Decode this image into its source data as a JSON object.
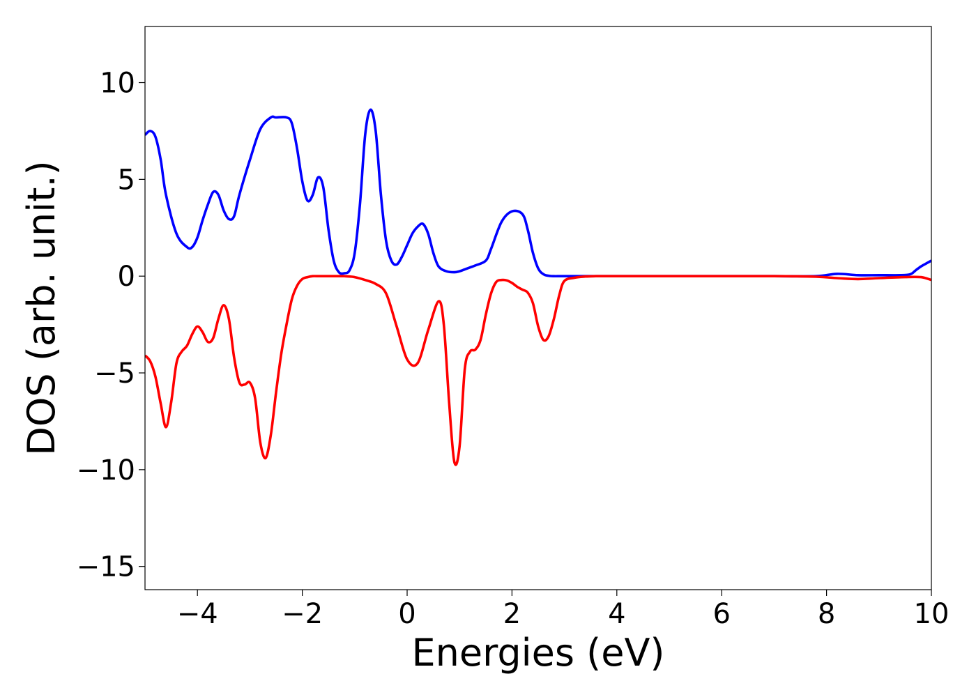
{
  "chart_data": {
    "type": "line",
    "title": "",
    "xlabel": "Energies (eV)",
    "ylabel": "DOS (arb. unit.)",
    "xlim": [
      -5,
      10
    ],
    "ylim": [
      -16.2,
      12.9
    ],
    "xticks": [
      -4,
      -2,
      0,
      2,
      4,
      6,
      8,
      10
    ],
    "xtick_labels": [
      "−4",
      "−2",
      "0",
      "2",
      "4",
      "6",
      "8",
      "10"
    ],
    "yticks": [
      10,
      5,
      0,
      -5,
      -10,
      -15
    ],
    "ytick_labels": [
      "10",
      "5",
      "0",
      "−5",
      "−10",
      "−15"
    ],
    "grid": false,
    "legend": "none",
    "series": [
      {
        "color": "#0000ff",
        "x": [
          -5.0,
          -4.9,
          -4.8,
          -4.7,
          -4.6,
          -4.4,
          -4.2,
          -4.1,
          -4.0,
          -3.9,
          -3.8,
          -3.7,
          -3.6,
          -3.5,
          -3.4,
          -3.3,
          -3.2,
          -3.0,
          -2.8,
          -2.6,
          -2.5,
          -2.3,
          -2.2,
          -2.1,
          -2.0,
          -1.9,
          -1.8,
          -1.7,
          -1.6,
          -1.5,
          -1.4,
          -1.3,
          -1.2,
          -1.1,
          -1.0,
          -0.9,
          -0.8,
          -0.7,
          -0.6,
          -0.5,
          -0.4,
          -0.3,
          -0.2,
          -0.1,
          0.0,
          0.1,
          0.2,
          0.3,
          0.4,
          0.5,
          0.6,
          0.75,
          0.9,
          1.0,
          1.1,
          1.2,
          1.3,
          1.5,
          1.6,
          1.8,
          2.0,
          2.2,
          2.3,
          2.4,
          2.5,
          2.6,
          2.7,
          2.8,
          2.9,
          3.0,
          3.1,
          3.2,
          3.4,
          4.0,
          5.0,
          6.0,
          7.0,
          7.8,
          8.2,
          8.6,
          9.0,
          9.4,
          9.6,
          9.7,
          9.8,
          9.9,
          10.0
        ],
        "values": [
          7.3,
          7.5,
          7.2,
          6.0,
          4.2,
          2.2,
          1.5,
          1.5,
          2.0,
          2.9,
          3.7,
          4.35,
          4.2,
          3.4,
          2.95,
          3.1,
          4.2,
          6.0,
          7.6,
          8.2,
          8.2,
          8.2,
          7.9,
          6.6,
          4.9,
          3.9,
          4.2,
          5.1,
          4.6,
          2.4,
          0.8,
          0.2,
          0.15,
          0.3,
          1.2,
          3.7,
          7.3,
          8.6,
          7.5,
          4.2,
          1.8,
          0.8,
          0.6,
          1.0,
          1.6,
          2.2,
          2.55,
          2.7,
          2.2,
          1.2,
          0.5,
          0.25,
          0.2,
          0.25,
          0.35,
          0.45,
          0.55,
          0.8,
          1.4,
          2.8,
          3.35,
          3.2,
          2.4,
          1.2,
          0.4,
          0.1,
          0.02,
          0.0,
          0.0,
          0.0,
          0.0,
          0.0,
          0.0,
          0.0,
          0.0,
          0.0,
          0.0,
          0.0,
          0.12,
          0.05,
          0.05,
          0.05,
          0.1,
          0.3,
          0.5,
          0.65,
          0.8
        ]
      },
      {
        "color": "#ff0000",
        "x": [
          -5.0,
          -4.9,
          -4.8,
          -4.7,
          -4.6,
          -4.5,
          -4.4,
          -4.3,
          -4.2,
          -4.1,
          -4.0,
          -3.9,
          -3.8,
          -3.7,
          -3.6,
          -3.5,
          -3.4,
          -3.3,
          -3.2,
          -3.1,
          -3.0,
          -2.9,
          -2.8,
          -2.7,
          -2.6,
          -2.5,
          -2.4,
          -2.3,
          -2.2,
          -2.1,
          -2.0,
          -1.9,
          -1.8,
          -1.7,
          -1.6,
          -1.5,
          -1.4,
          -1.3,
          -1.2,
          -1.1,
          -1.0,
          -0.8,
          -0.6,
          -0.4,
          -0.2,
          0.0,
          0.2,
          0.4,
          0.6,
          0.7,
          0.8,
          0.9,
          1.0,
          1.1,
          1.2,
          1.3,
          1.4,
          1.5,
          1.6,
          1.7,
          1.8,
          1.9,
          2.0,
          2.1,
          2.2,
          2.3,
          2.4,
          2.5,
          2.6,
          2.7,
          2.8,
          2.9,
          3.0,
          3.2,
          3.4,
          3.6,
          3.7,
          3.8,
          3.9,
          4.0,
          4.1,
          4.2,
          4.3,
          4.4,
          4.5,
          4.7,
          5.0,
          6.0,
          7.0,
          7.8,
          8.2,
          8.6,
          9.0,
          9.5,
          9.8,
          10.0
        ],
        "values": [
          -4.1,
          -4.4,
          -5.2,
          -6.6,
          -7.8,
          -6.5,
          -4.5,
          -3.9,
          -3.6,
          -3.0,
          -2.6,
          -2.9,
          -3.4,
          -3.2,
          -2.2,
          -1.5,
          -2.2,
          -4.2,
          -5.5,
          -5.6,
          -5.5,
          -6.3,
          -8.6,
          -9.4,
          -8.2,
          -6.0,
          -4.0,
          -2.5,
          -1.2,
          -0.5,
          -0.15,
          -0.05,
          0.0,
          0.0,
          0.0,
          0.0,
          0.0,
          0.0,
          0.0,
          -0.02,
          -0.05,
          -0.2,
          -0.4,
          -0.9,
          -2.6,
          -4.3,
          -4.5,
          -2.8,
          -1.3,
          -2.5,
          -6.5,
          -9.6,
          -8.8,
          -4.8,
          -3.9,
          -3.8,
          -3.3,
          -2.0,
          -0.9,
          -0.3,
          -0.2,
          -0.22,
          -0.35,
          -0.55,
          -0.7,
          -0.85,
          -1.4,
          -2.6,
          -3.3,
          -3.1,
          -2.2,
          -1.0,
          -0.25,
          -0.08,
          -0.02,
          0.0,
          0.0,
          0.0,
          0.0,
          0.0,
          0.0,
          0.0,
          0.0,
          0.0,
          0.0,
          0.0,
          0.0,
          0.0,
          0.0,
          -0.03,
          -0.1,
          -0.15,
          -0.1,
          -0.05,
          -0.05,
          -0.2
        ]
      }
    ]
  }
}
